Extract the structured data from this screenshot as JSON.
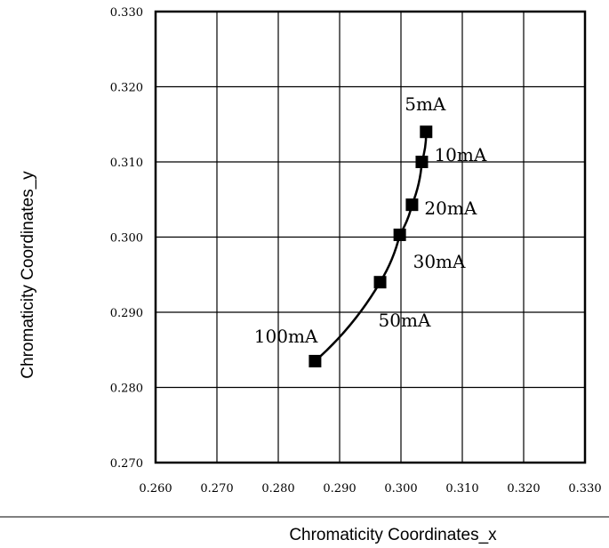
{
  "chart_data": {
    "type": "line",
    "xlabel": "Chromaticity Coordinates_x",
    "ylabel": "Chromaticity Coordinates_y",
    "xlim": [
      0.26,
      0.33
    ],
    "ylim": [
      0.27,
      0.33
    ],
    "x_ticks": [
      "0.260",
      "0.270",
      "0.280",
      "0.290",
      "0.300",
      "0.310",
      "0.320",
      "0.330"
    ],
    "y_ticks": [
      "0.270",
      "0.280",
      "0.290",
      "0.300",
      "0.310",
      "0.320",
      "0.330"
    ],
    "grid": true,
    "marker": "square",
    "series": [
      {
        "points": [
          {
            "label": "5mA",
            "x": 0.3041,
            "y": 0.314
          },
          {
            "label": "10mA",
            "x": 0.3034,
            "y": 0.31
          },
          {
            "label": "20mA",
            "x": 0.3018,
            "y": 0.3043
          },
          {
            "label": "30mA",
            "x": 0.2998,
            "y": 0.3003
          },
          {
            "label": "50mA",
            "x": 0.2966,
            "y": 0.294
          },
          {
            "label": "100mA",
            "x": 0.286,
            "y": 0.2835
          }
        ]
      }
    ]
  }
}
